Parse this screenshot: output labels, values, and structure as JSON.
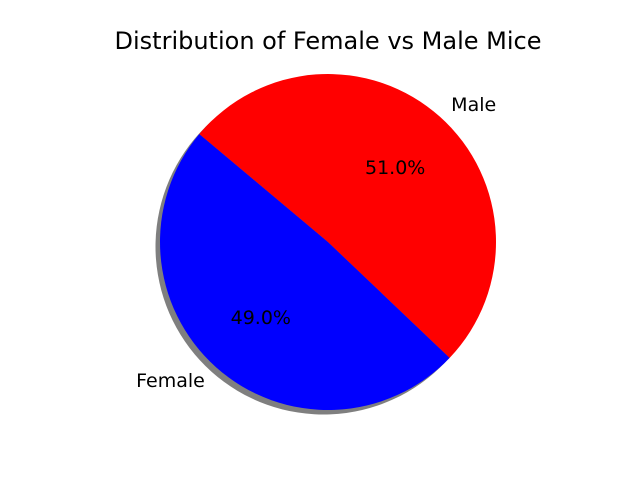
{
  "chart_data": {
    "type": "pie",
    "title": "Distribution of Female vs Male Mice",
    "slices": [
      {
        "label": "Female",
        "value": 49.0,
        "pct_label": "49.0%",
        "color": "#0000ff"
      },
      {
        "label": "Male",
        "value": 51.0,
        "pct_label": "51.0%",
        "color": "#ff0000"
      }
    ],
    "shadow": true,
    "legend": "none"
  }
}
